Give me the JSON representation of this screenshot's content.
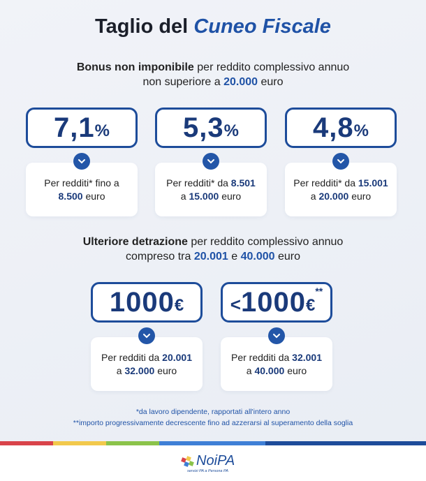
{
  "title": {
    "plain": "Taglio del",
    "highlight": "Cuneo Fiscale"
  },
  "sections": [
    {
      "heading": [
        [
          {
            "text": "Bonus non imponibile",
            "bold": true
          },
          {
            "text": "per reddito complessivo annuo"
          }
        ],
        [
          {
            "text": "non superiore a"
          },
          {
            "text": "20.000",
            "accent": true
          },
          {
            "text": "euro"
          }
        ]
      ],
      "cards": [
        {
          "value": "7,1",
          "unit": "%",
          "description": [
            [
              {
                "text": "Per redditi* fino a"
              }
            ],
            [
              {
                "text": "8.500",
                "bold": true
              },
              {
                "text": "euro"
              }
            ]
          ]
        },
        {
          "value": "5,3",
          "unit": "%",
          "description": [
            [
              {
                "text": "Per redditi* da"
              },
              {
                "text": "8.501",
                "bold": true
              }
            ],
            [
              {
                "text": "a"
              },
              {
                "text": "15.000",
                "bold": true
              },
              {
                "text": "euro"
              }
            ]
          ]
        },
        {
          "value": "4,8",
          "unit": "%",
          "description": [
            [
              {
                "text": "Per redditi* da"
              },
              {
                "text": "15.001",
                "bold": true
              }
            ],
            [
              {
                "text": "a"
              },
              {
                "text": "20.000",
                "bold": true
              },
              {
                "text": "euro"
              }
            ]
          ]
        }
      ]
    },
    {
      "heading": [
        [
          {
            "text": "Ulteriore detrazione",
            "bold": true
          },
          {
            "text": "per reddito complessivo annuo"
          }
        ],
        [
          {
            "text": "compreso tra"
          },
          {
            "text": "20.001",
            "accent": true
          },
          {
            "text": "e"
          },
          {
            "text": "40.000",
            "accent": true
          },
          {
            "text": "euro"
          }
        ]
      ],
      "cards": [
        {
          "value": "1000",
          "unit": "€",
          "description": [
            [
              {
                "text": "Per redditi da"
              },
              {
                "text": "20.001",
                "bold": true
              }
            ],
            [
              {
                "text": "a"
              },
              {
                "text": "32.000",
                "bold": true
              },
              {
                "text": "euro"
              }
            ]
          ]
        },
        {
          "prefix": "<",
          "value": "1000",
          "unit": "€",
          "mark": "**",
          "description": [
            [
              {
                "text": "Per redditi da"
              },
              {
                "text": "32.001",
                "bold": true
              }
            ],
            [
              {
                "text": "a"
              },
              {
                "text": "40.000",
                "bold": true
              },
              {
                "text": "euro"
              }
            ]
          ]
        }
      ]
    }
  ],
  "footnotes": [
    "*da lavoro dipendente, rapportati all'intero anno",
    "**importo progressivamente decrescente fino ad azzerarsi al superamento della soglia"
  ],
  "footer": {
    "logo": "NoiPA",
    "tagline": "servizi PA a Persona PA"
  }
}
